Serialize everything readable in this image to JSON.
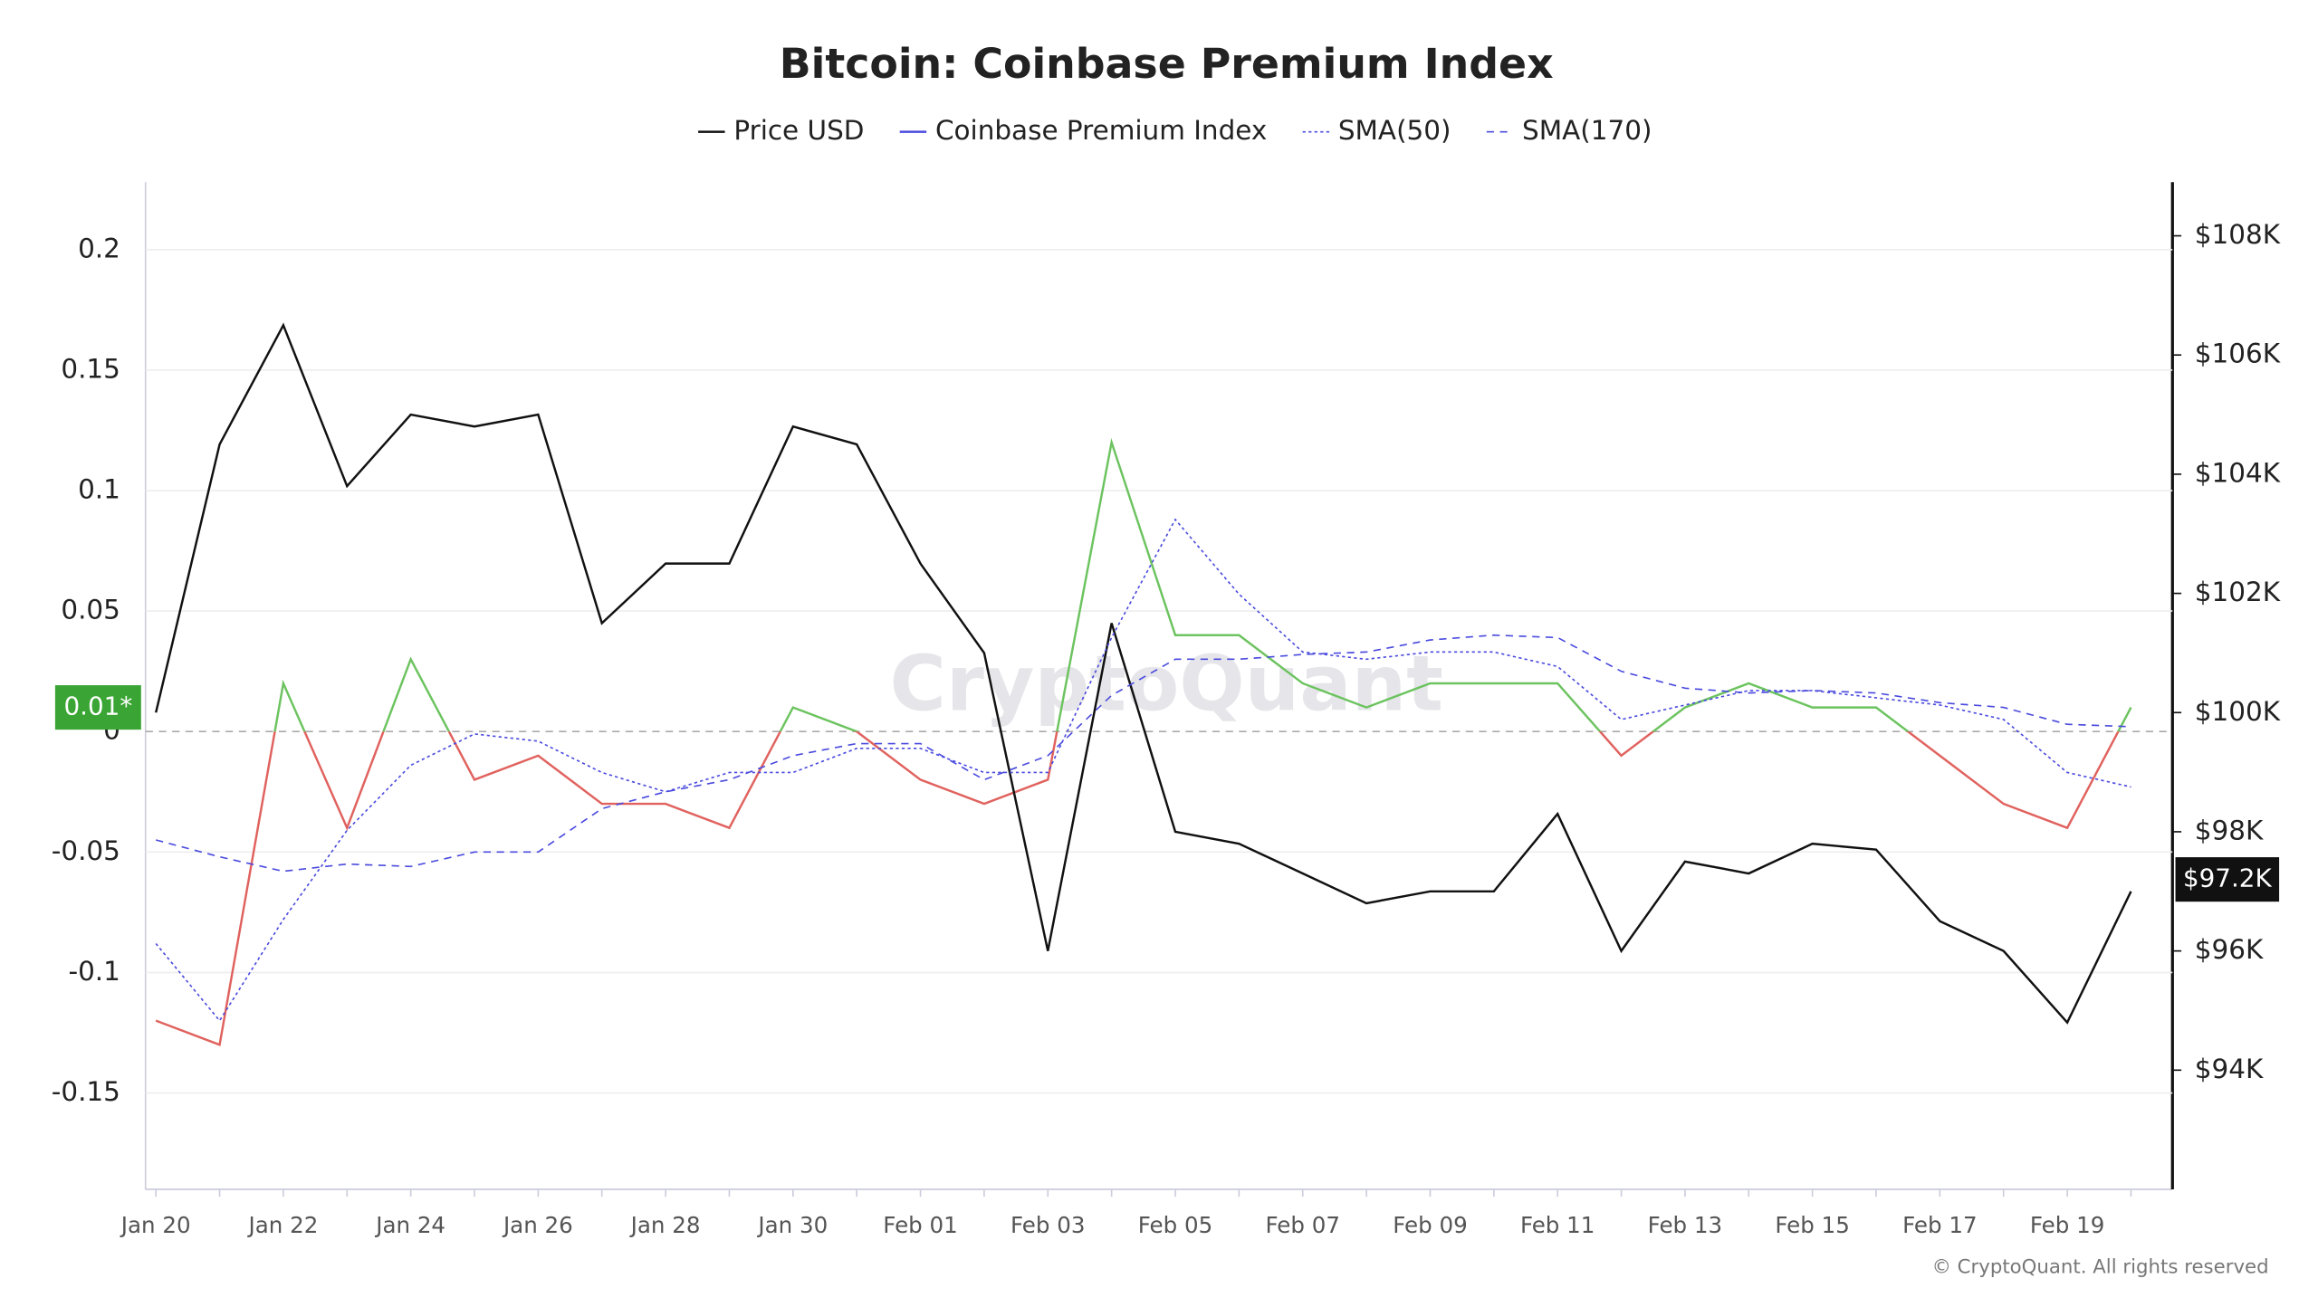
{
  "chart_data": {
    "type": "line",
    "title": "Bitcoin: Coinbase Premium Index",
    "categories": [
      "Jan 20",
      null,
      "Jan 22",
      null,
      "Jan 24",
      null,
      "Jan 26",
      null,
      "Jan 28",
      null,
      "Jan 30",
      null,
      "Feb 01",
      null,
      "Feb 03",
      null,
      "Feb 05",
      null,
      "Feb 07",
      null,
      "Feb 09",
      null,
      "Feb 11",
      null,
      "Feb 13",
      null,
      "Feb 15",
      null,
      "Feb 17",
      null,
      "Feb 19",
      null
    ],
    "series": [
      {
        "name": "Price USD",
        "color": "#111111",
        "axis": "y2",
        "dash": "solid",
        "values": [
          100000,
          104500,
          106500,
          103800,
          105000,
          104800,
          105000,
          101500,
          102500,
          102500,
          104800,
          104500,
          102500,
          101000,
          96000,
          101500,
          98000,
          97800,
          97300,
          96800,
          97000,
          97000,
          98300,
          96000,
          97500,
          97300,
          97800,
          97700,
          96500,
          96000,
          94800,
          97000
        ]
      },
      {
        "name": "Coinbase Premium Index",
        "color": "#4b4bdf",
        "positive_color": "#6cc35f",
        "negative_color": "#e0625e",
        "dash": "solid",
        "values": [
          -0.12,
          -0.13,
          0.02,
          -0.04,
          0.03,
          -0.02,
          -0.01,
          -0.03,
          -0.03,
          -0.04,
          0.01,
          0,
          -0.02,
          -0.03,
          -0.02,
          0.12,
          0.04,
          0.04,
          0.02,
          0.01,
          0.02,
          0.02,
          0.02,
          -0.01,
          0.01,
          0.02,
          0.01,
          0.01,
          -0.01,
          -0.03,
          -0.04,
          0.01
        ]
      },
      {
        "name": "SMA(50)",
        "color": "#4b4bdf",
        "dash": "dotted",
        "values": [
          -0.088,
          -0.12,
          -0.078,
          -0.041,
          -0.014,
          -0.001,
          -0.004,
          -0.017,
          -0.025,
          -0.017,
          -0.017,
          -0.007,
          -0.007,
          -0.017,
          -0.017,
          0.039,
          0.088,
          0.057,
          0.033,
          0.03,
          0.033,
          0.033,
          0.027,
          0.005,
          0.011,
          0.017,
          0.017,
          0.014,
          0.011,
          0.005,
          -0.017,
          -0.023
        ]
      },
      {
        "name": "SMA(170)",
        "color": "#4b4bdf",
        "dash": "dashed",
        "values": [
          -0.045,
          -0.052,
          -0.058,
          -0.055,
          -0.056,
          -0.05,
          -0.05,
          -0.032,
          -0.025,
          -0.02,
          -0.01,
          -0.005,
          -0.005,
          -0.02,
          -0.01,
          0.015,
          0.03,
          0.03,
          0.032,
          0.033,
          0.038,
          0.04,
          0.039,
          0.025,
          0.018,
          0.016,
          0.017,
          0.016,
          0.012,
          0.01,
          0.003,
          0.002
        ]
      }
    ],
    "ylim": [
      -0.19,
      0.228
    ],
    "yticks": [
      -0.15,
      -0.1,
      -0.05,
      0,
      0.05,
      0.1,
      0.15,
      0.2
    ],
    "y2lim": [
      92000,
      108900
    ],
    "y2ticks": [
      {
        "value": 94000,
        "label": "$94K"
      },
      {
        "value": 96000,
        "label": "$96K"
      },
      {
        "value": 98000,
        "label": "$98K"
      },
      {
        "value": 100000,
        "label": "$100K"
      },
      {
        "value": 102000,
        "label": "$102K"
      },
      {
        "value": 104000,
        "label": "$104K"
      },
      {
        "value": 106000,
        "label": "$106K"
      },
      {
        "value": 108000,
        "label": "$108K"
      }
    ],
    "grid": true,
    "current_labels": [
      {
        "value": 0.01,
        "label": "0.01*",
        "axis": "y",
        "color": "#3aa534"
      },
      {
        "value": 97200,
        "label": "$97.2K",
        "axis": "y2",
        "color": "#111111"
      }
    ],
    "watermark": "CryptoQuant",
    "footer": "© CryptoQuant. All rights reserved"
  }
}
